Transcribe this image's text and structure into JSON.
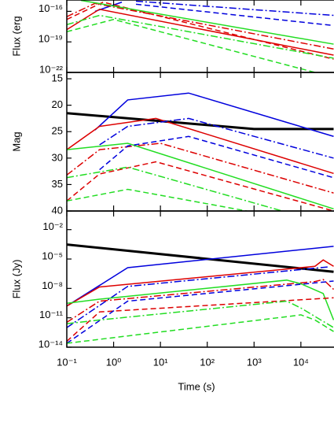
{
  "chart_data": [
    {
      "type": "line",
      "ylabel": "Flux (erg",
      "log_x": true,
      "log_y": true,
      "xlim": [
        0.1,
        51000
      ],
      "ylim": [
        1e-22,
        1.3e-15
      ],
      "xticks": [
        0.1,
        1,
        10,
        100,
        1000,
        10000
      ],
      "yticks": [
        {
          "value": 1e-22,
          "label": "10⁻²²"
        },
        {
          "value": 1e-19,
          "label": "10⁻¹⁹"
        },
        {
          "value": 1e-16,
          "label": "10⁻¹⁶"
        }
      ],
      "series": [
        {
          "color": "#0000dd",
          "dash": "solid",
          "x": [
            0.4,
            1.5
          ],
          "values": [
            1e-16,
            8e-16
          ]
        },
        {
          "color": "#dd0000",
          "dash": "dashdot",
          "x": [
            0.1,
            0.4,
            50000
          ],
          "values": [
            3e-17,
            6e-16,
            2e-20
          ]
        },
        {
          "color": "#dd0000",
          "dash": "dashed",
          "x": [
            0.1,
            0.6,
            50000
          ],
          "values": [
            1.6e-17,
            8e-16,
            2e-21
          ]
        },
        {
          "color": "#dd0000",
          "dash": "solid",
          "x": [
            0.1,
            0.5,
            50000
          ],
          "values": [
            1.6e-18,
            1.6e-16,
            5e-21
          ]
        },
        {
          "color": "#0000dd",
          "dash": "dashdot",
          "x": [
            3,
            50000
          ],
          "values": [
            1e-15,
            4e-17
          ]
        },
        {
          "color": "#0000dd",
          "dash": "dashed",
          "x": [
            3,
            50000
          ],
          "values": [
            5e-16,
            4e-18
          ]
        },
        {
          "color": "#22dd22",
          "dash": "solid",
          "x": [
            0.2,
            50000
          ],
          "values": [
            1.2e-15,
            6e-20
          ]
        },
        {
          "color": "#22dd22",
          "dash": "dashdot",
          "x": [
            0.1,
            0.5,
            50000
          ],
          "values": [
            5e-18,
            4e-17,
            2.5e-21
          ]
        },
        {
          "color": "#22dd22",
          "dash": "dashed",
          "x": [
            0.1,
            1,
            20000
          ],
          "values": [
            1e-18,
            1.6e-17,
            1e-22
          ]
        }
      ]
    },
    {
      "type": "line",
      "ylabel": "Mag",
      "log_x": true,
      "log_y": false,
      "xlim": [
        0.1,
        51000
      ],
      "ylim": [
        40,
        13.8
      ],
      "xticks": [
        0.1,
        1,
        10,
        100,
        1000,
        10000
      ],
      "yticks": [
        15,
        20,
        25,
        30,
        35,
        40
      ],
      "series": [
        {
          "color": "#000000",
          "dash": "solid",
          "width": 3,
          "x": [
            0.1,
            1000,
            50000
          ],
          "values": [
            21.5,
            24.5,
            24.5
          ]
        },
        {
          "color": "#0000dd",
          "dash": "solid",
          "x": [
            0.4,
            2,
            40,
            50000
          ],
          "values": [
            24.7,
            19,
            17.7,
            25.9
          ]
        },
        {
          "color": "#dd0000",
          "dash": "solid",
          "x": [
            0.1,
            0.5,
            8,
            50000
          ],
          "values": [
            28.4,
            24,
            22.5,
            32.9
          ]
        },
        {
          "color": "#0000dd",
          "dash": "dashdot",
          "x": [
            0.5,
            2,
            40,
            50000
          ],
          "values": [
            27.5,
            24,
            22.5,
            30
          ]
        },
        {
          "color": "#dd0000",
          "dash": "dashdot",
          "x": [
            0.1,
            0.5,
            10,
            50000
          ],
          "values": [
            33.2,
            28.4,
            27.2,
            36.6
          ]
        },
        {
          "color": "#22dd22",
          "dash": "solid",
          "x": [
            0.1,
            2,
            50000
          ],
          "values": [
            28.4,
            27.2,
            39.6
          ]
        },
        {
          "color": "#0000dd",
          "dash": "dashed",
          "x": [
            0.5,
            2,
            40,
            50000
          ],
          "values": [
            32.2,
            27.7,
            25.9,
            33.7
          ]
        },
        {
          "color": "#dd0000",
          "dash": "dashed",
          "x": [
            0.1,
            0.5,
            8,
            50000
          ],
          "values": [
            38.1,
            33,
            30.7,
            40
          ]
        },
        {
          "color": "#22dd22",
          "dash": "dashdot",
          "x": [
            0.1,
            2,
            4000
          ],
          "values": [
            33.7,
            31.7,
            40
          ]
        },
        {
          "color": "#22dd22",
          "dash": "dashed",
          "x": [
            0.1,
            2,
            700
          ],
          "values": [
            38.1,
            35.9,
            40
          ]
        }
      ]
    },
    {
      "type": "line",
      "ylabel": "Flux (Jy)",
      "xlabel": "Time (s)",
      "log_x": true,
      "log_y": true,
      "xlim": [
        0.1,
        51000
      ],
      "ylim": [
        1e-14,
        0.8
      ],
      "xticks": [
        {
          "value": 0.1,
          "label": "10⁻¹"
        },
        {
          "value": 1,
          "label": "10⁰"
        },
        {
          "value": 10,
          "label": "10¹"
        },
        {
          "value": 100,
          "label": "10²"
        },
        {
          "value": 1000,
          "label": "10³"
        },
        {
          "value": 10000,
          "label": "10⁴"
        }
      ],
      "yticks": [
        {
          "value": 1e-14,
          "label": "10⁻¹⁴"
        },
        {
          "value": 1e-11,
          "label": "10⁻¹¹"
        },
        {
          "value": 1e-08,
          "label": "10⁻⁸"
        },
        {
          "value": 1e-05,
          "label": "10⁻⁵"
        },
        {
          "value": 0.01,
          "label": "10⁻²"
        }
      ],
      "series": [
        {
          "color": "#000000",
          "dash": "solid",
          "width": 3,
          "x": [
            0.1,
            50000
          ],
          "values": [
            0.0003,
            5e-07
          ]
        },
        {
          "color": "#0000dd",
          "dash": "solid",
          "x": [
            0.1,
            2,
            50000
          ],
          "values": [
            1.6e-10,
            1.3e-06,
            0.0002
          ]
        },
        {
          "color": "#dd0000",
          "dash": "solid",
          "x": [
            0.1,
            0.5,
            20000,
            30000,
            50000
          ],
          "values": [
            1.6e-10,
            1.4e-08,
            1.8e-06,
            8e-06,
            1.8e-06
          ]
        },
        {
          "color": "#0000dd",
          "dash": "dashdot",
          "x": [
            0.1,
            2,
            40000
          ],
          "values": [
            1e-12,
            1.6e-08,
            1.6e-06
          ]
        },
        {
          "color": "#dd0000",
          "dash": "dashdot",
          "x": [
            0.1,
            0.5,
            20000,
            30000,
            50000
          ],
          "values": [
            3.5e-12,
            5e-10,
            5e-08,
            8e-08,
            8e-09
          ]
        },
        {
          "color": "#22dd22",
          "dash": "solid",
          "x": [
            0.1,
            0.5,
            5000,
            10000,
            30000,
            50000
          ],
          "values": [
            3e-10,
            8e-10,
            7e-08,
            3e-08,
            3e-09,
            6e-12
          ]
        },
        {
          "color": "#dd0000",
          "dash": "dashed",
          "x": [
            0.1,
            0.5,
            50000
          ],
          "values": [
            4e-14,
            4e-11,
            1.1e-09
          ]
        },
        {
          "color": "#0000dd",
          "dash": "dashed",
          "x": [
            0.1,
            2,
            50000
          ],
          "values": [
            2.5e-14,
            5e-10,
            5.6e-08
          ]
        },
        {
          "color": "#22dd22",
          "dash": "dashdot",
          "x": [
            0.1,
            0.5,
            5000,
            10000,
            50000
          ],
          "values": [
            2.5e-12,
            6e-12,
            5e-10,
            1e-10,
            1e-12
          ]
        },
        {
          "color": "#22dd22",
          "dash": "dashed",
          "x": [
            0.1,
            5000,
            10000,
            20000,
            50000
          ],
          "values": [
            2.5e-14,
            1.3e-11,
            2e-11,
            6e-12,
            4e-13
          ]
        }
      ]
    }
  ]
}
